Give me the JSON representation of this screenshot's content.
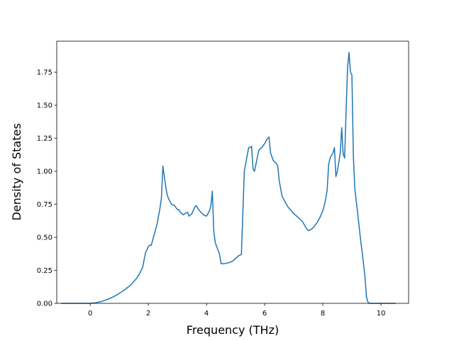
{
  "chart_data": {
    "type": "line",
    "title": "",
    "xlabel": "Frequency (THz)",
    "ylabel": "Density of States",
    "xlim": [
      -1.15,
      10.95
    ],
    "ylim": [
      0,
      1.985
    ],
    "xticks": [
      0,
      2,
      4,
      6,
      8,
      10
    ],
    "xtick_labels": [
      "0",
      "2",
      "4",
      "6",
      "8",
      "10"
    ],
    "yticks": [
      0,
      0.25,
      0.5,
      0.75,
      1.0,
      1.25,
      1.5,
      1.75
    ],
    "ytick_labels": [
      "0.00",
      "0.25",
      "0.50",
      "0.75",
      "1.00",
      "1.25",
      "1.50",
      "1.75"
    ],
    "grid": false,
    "legend": "none",
    "series": [
      {
        "color": "#1f77b4",
        "x": [
          -1.0,
          -0.5,
          0.0,
          0.2,
          0.4,
          0.6,
          0.8,
          1.0,
          1.2,
          1.4,
          1.6,
          1.7,
          1.8,
          1.9,
          2.0,
          2.05,
          2.1,
          2.15,
          2.2,
          2.3,
          2.4,
          2.45,
          2.5,
          2.55,
          2.6,
          2.65,
          2.7,
          2.8,
          2.9,
          3.0,
          3.05,
          3.1,
          3.2,
          3.3,
          3.35,
          3.4,
          3.5,
          3.6,
          3.65,
          3.7,
          3.8,
          3.9,
          4.0,
          4.1,
          4.15,
          4.2,
          4.25,
          4.3,
          4.4,
          4.45,
          4.5,
          4.6,
          4.7,
          4.8,
          4.9,
          5.0,
          5.1,
          5.2,
          5.3,
          5.4,
          5.45,
          5.5,
          5.55,
          5.6,
          5.65,
          5.8,
          5.9,
          6.0,
          6.1,
          6.15,
          6.2,
          6.3,
          6.4,
          6.45,
          6.5,
          6.6,
          6.7,
          6.8,
          7.0,
          7.2,
          7.3,
          7.4,
          7.5,
          7.6,
          7.7,
          7.8,
          7.9,
          8.0,
          8.05,
          8.1,
          8.15,
          8.2,
          8.25,
          8.3,
          8.35,
          8.4,
          8.45,
          8.5,
          8.6,
          8.65,
          8.7,
          8.75,
          8.8,
          8.85,
          8.9,
          8.95,
          9.0,
          9.05,
          9.1,
          9.2,
          9.3,
          9.4,
          9.45,
          9.5,
          9.55,
          9.6,
          9.7,
          10.0,
          10.5
        ],
        "y": [
          0.0,
          0.0,
          0.0,
          0.005,
          0.015,
          0.03,
          0.05,
          0.075,
          0.105,
          0.14,
          0.19,
          0.225,
          0.27,
          0.38,
          0.43,
          0.44,
          0.44,
          0.48,
          0.52,
          0.6,
          0.72,
          0.8,
          1.04,
          0.96,
          0.88,
          0.82,
          0.79,
          0.75,
          0.74,
          0.71,
          0.71,
          0.69,
          0.67,
          0.685,
          0.69,
          0.66,
          0.68,
          0.73,
          0.74,
          0.72,
          0.69,
          0.67,
          0.66,
          0.7,
          0.74,
          0.85,
          0.55,
          0.46,
          0.4,
          0.37,
          0.3,
          0.3,
          0.305,
          0.31,
          0.32,
          0.34,
          0.36,
          0.37,
          1.0,
          1.12,
          1.18,
          1.18,
          1.19,
          1.02,
          1.0,
          1.16,
          1.18,
          1.21,
          1.25,
          1.26,
          1.14,
          1.08,
          1.06,
          1.04,
          0.93,
          0.81,
          0.77,
          0.73,
          0.68,
          0.64,
          0.62,
          0.58,
          0.55,
          0.56,
          0.58,
          0.61,
          0.65,
          0.7,
          0.74,
          0.79,
          0.86,
          1.05,
          1.1,
          1.12,
          1.14,
          1.18,
          0.96,
          1.0,
          1.14,
          1.33,
          1.13,
          1.1,
          1.45,
          1.78,
          1.9,
          1.75,
          1.73,
          1.12,
          0.87,
          0.68,
          0.48,
          0.3,
          0.2,
          0.05,
          0.01,
          0.0,
          0.0,
          0.0,
          0.0
        ]
      }
    ]
  }
}
